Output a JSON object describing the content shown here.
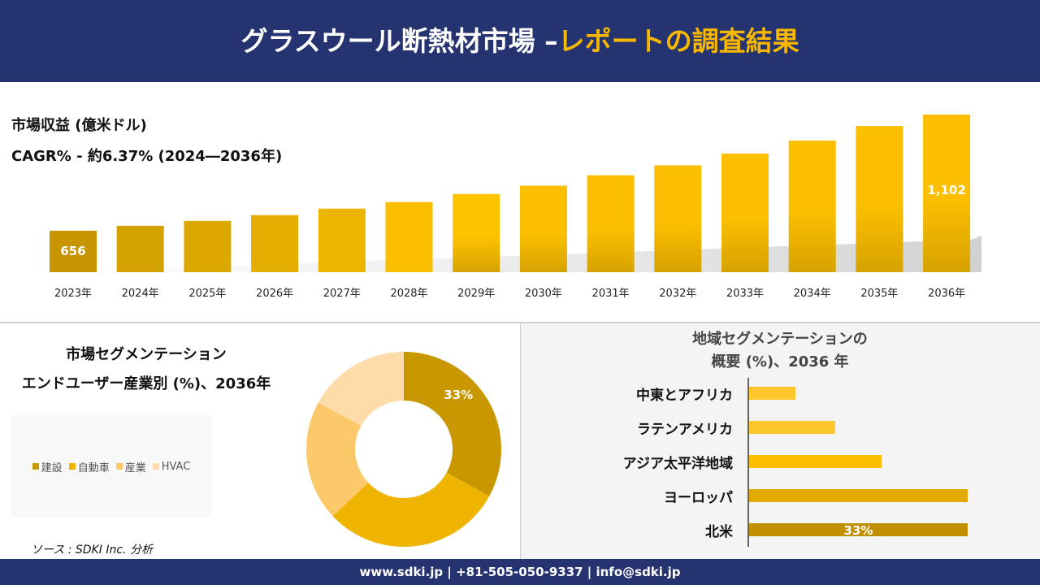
{
  "header": {
    "title_main": "グラスウール断熱材市場 –",
    "title_accent": "レポートの調査結果"
  },
  "colors": {
    "navy": "#253470",
    "accent": "#f9b800"
  },
  "revenue": {
    "title": "市場収益 (億米ドル)",
    "cagr": "CAGR% - 約6.37% (2024―2036年)"
  },
  "chart_data": [
    {
      "type": "bar",
      "title": "市場収益 (億米ドル)",
      "categories": [
        "2023年",
        "2024年",
        "2025年",
        "2026年",
        "2027年",
        "2028年",
        "2029年",
        "2030年",
        "2031年",
        "2032年",
        "2033年",
        "2034年",
        "2035年",
        "2036年"
      ],
      "values": [
        656,
        675,
        694,
        716,
        741,
        766,
        797,
        829,
        869,
        907,
        952,
        1002,
        1058,
        1102
      ],
      "data_labels": {
        "0": "656",
        "13": "1,102"
      }
    },
    {
      "type": "pie",
      "title": "市場セグメンテーション エンドユーザー産業別 (%)、2036年",
      "categories": [
        "建設",
        "自動車",
        "産業",
        "HVAC"
      ],
      "values": [
        33,
        30,
        20,
        17
      ],
      "colors": [
        "#c99700",
        "#efb400",
        "#fcc96a",
        "#fddcaa"
      ],
      "data_labels": {
        "0": "33%"
      },
      "legend": "left"
    },
    {
      "type": "bar",
      "orientation": "horizontal",
      "title": "地域セグメンテーションの 概要 (%)、2036 年",
      "categories": [
        "中東とアフリカ",
        "ラテンアメリカ",
        "アジア太平洋地域",
        "ヨーロッパ",
        "北米"
      ],
      "values": [
        7,
        13,
        20,
        33,
        33
      ],
      "colors": [
        "#fdc62a",
        "#fdc62a",
        "#fdc000",
        "#e0aa00",
        "#c09000"
      ],
      "data_labels": {
        "4": "33%"
      }
    }
  ],
  "segment": {
    "title1": "市場セグメンテーション",
    "title2": "エンドユーザー産業別 (%)、2036年"
  },
  "region": {
    "title1": "地域セグメンテーションの",
    "title2": "概要 (%)、2036 年"
  },
  "source": "ソース : SDKI Inc. 分析",
  "footer": "www.sdki.jp | +81-505-050-9337 | info@sdki.jp"
}
